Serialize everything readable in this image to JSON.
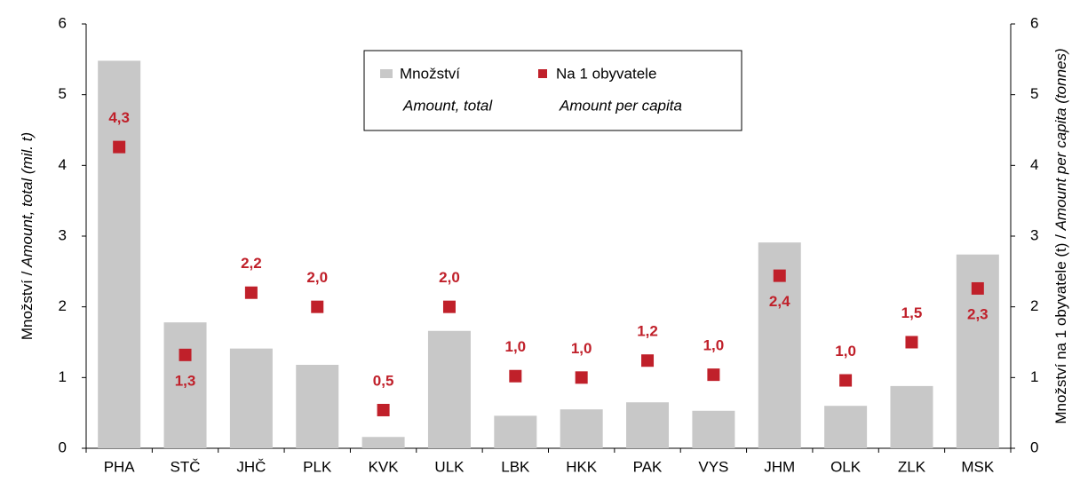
{
  "chart_data": {
    "type": "bar",
    "categories": [
      "PHA",
      "STČ",
      "JHČ",
      "PLK",
      "KVK",
      "ULK",
      "LBK",
      "HKK",
      "PAK",
      "VYS",
      "JHM",
      "OLK",
      "ZLK",
      "MSK"
    ],
    "series": [
      {
        "name": "Množství",
        "subtitle": "Amount, total",
        "type": "bar",
        "color": "#c8c8c8",
        "axis": "y",
        "values": [
          5.48,
          1.78,
          1.41,
          1.18,
          0.16,
          1.66,
          0.46,
          0.55,
          0.65,
          0.53,
          2.91,
          0.6,
          0.88,
          2.74
        ]
      },
      {
        "name": "Na 1 obyvatele",
        "subtitle": "Amount per capita",
        "type": "scatter",
        "color": "#c0202a",
        "axis": "y2",
        "values": [
          4.26,
          1.32,
          2.2,
          2.0,
          0.54,
          2.0,
          1.02,
          1.0,
          1.24,
          1.04,
          2.44,
          0.96,
          1.5,
          2.26
        ],
        "value_labels": [
          "4,3",
          "1,3",
          "2,2",
          "2,0",
          "0,5",
          "2,0",
          "1,0",
          "1,0",
          "1,2",
          "1,0",
          "2,4",
          "1,0",
          "1,5",
          "2,3"
        ]
      }
    ],
    "ylabel": {
      "regular": "Množství / ",
      "italic": "Amount, total (mil. t)"
    },
    "y2label": {
      "regular": "Množství na 1 obyvatele (t) / ",
      "italic": "Amount per capita (tonnes)"
    },
    "ylim": [
      0,
      6
    ],
    "yticks": [
      0,
      1,
      2,
      3,
      4,
      5,
      6
    ],
    "y2lim": [
      0,
      6
    ],
    "y2ticks": [
      0,
      1,
      2,
      3,
      4,
      5,
      6
    ],
    "grid": false,
    "legend": "top"
  }
}
